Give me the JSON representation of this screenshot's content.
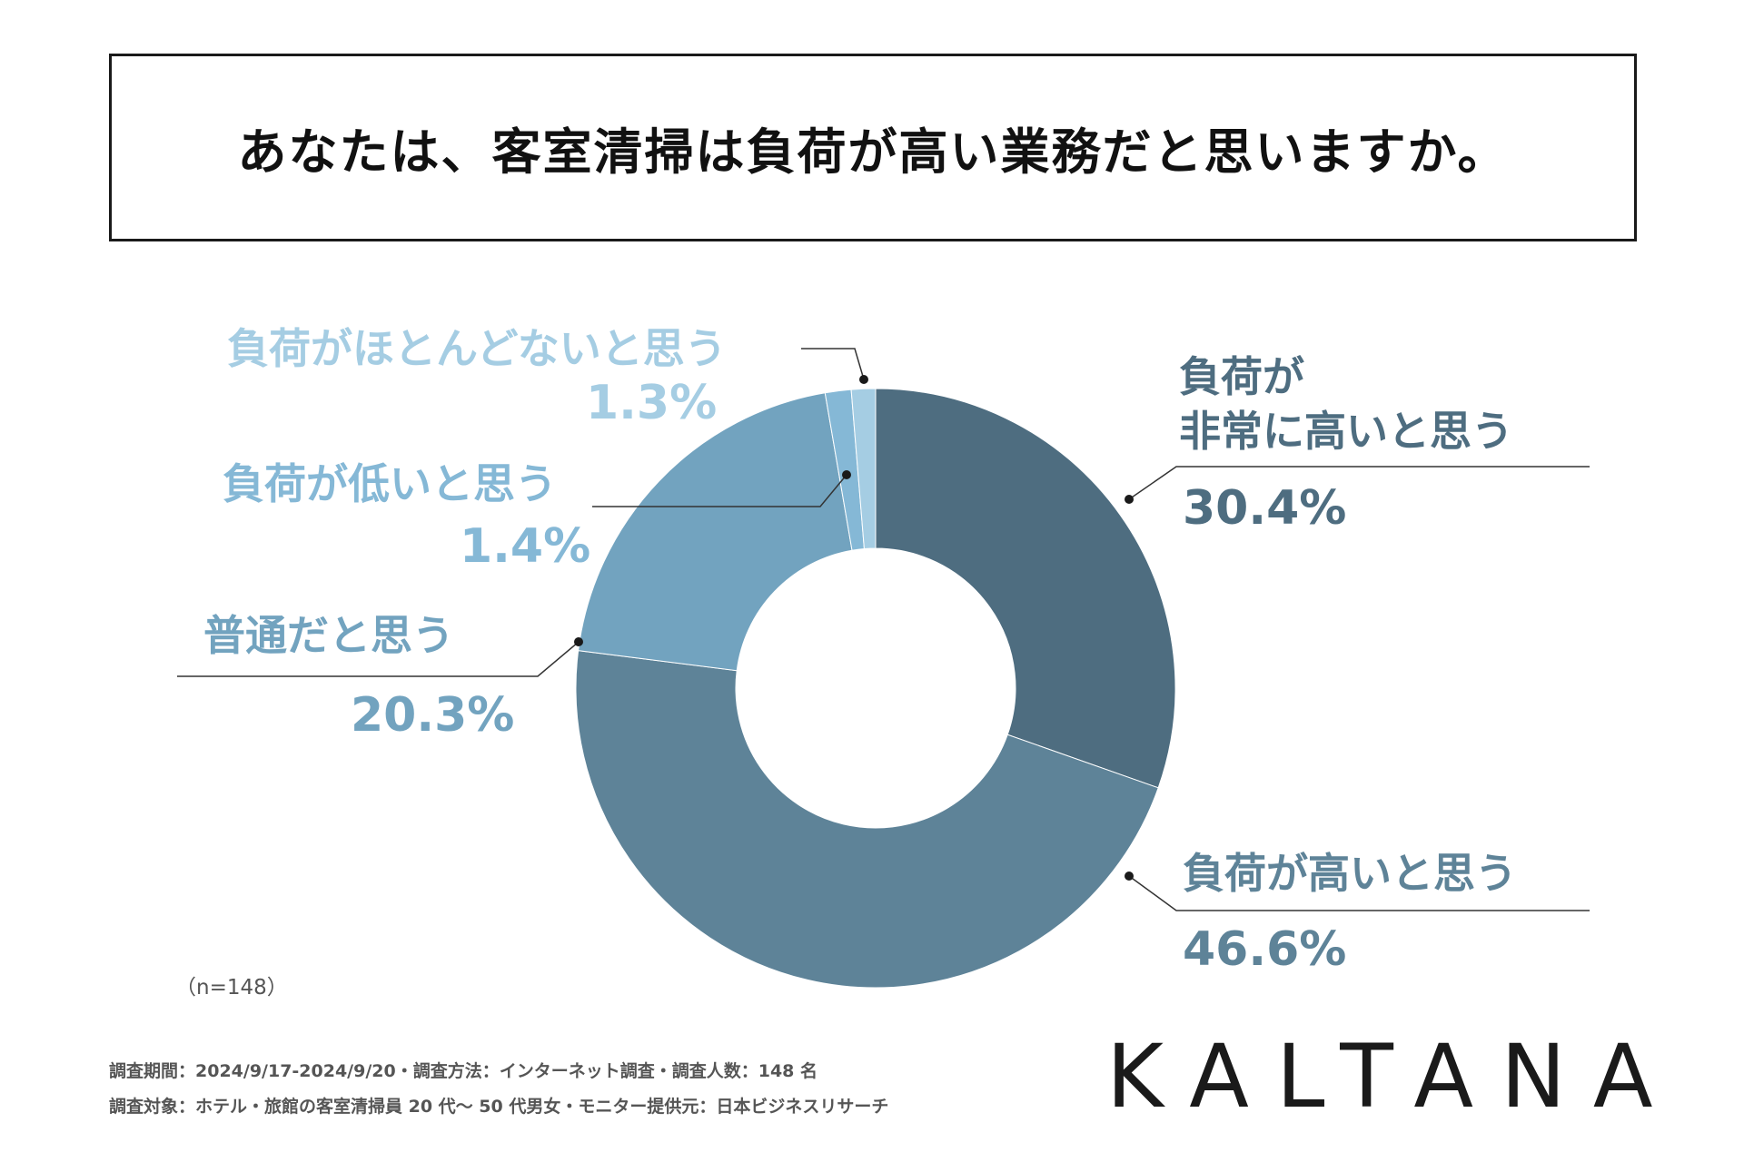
{
  "title": "あなたは、客室清掃は負荷が高い業務だと思いますか。",
  "sample_size": "（n=148）",
  "footer": {
    "line1": "調査期間：2024/9/17-2024/9/20・調査方法：インターネット調査・調査人数：148 名",
    "line2": "調査対象：ホテル・旅館の客室清掃員 20 代〜 50 代男女・モニター提供元：日本ビジネスリサーチ"
  },
  "logo": "KALTANA",
  "chart_data": {
    "type": "pie",
    "donut": true,
    "title": "",
    "start_angle_deg": 0,
    "direction": "clockwise",
    "slices": [
      {
        "label": "負荷が非常に高いと思う",
        "label_lines": [
          "負荷が",
          "非常に高いと思う"
        ],
        "value": 30.4,
        "display": "30.4%",
        "color": "#4e6d80",
        "text_color": "#4e6d80"
      },
      {
        "label": "負荷が高いと思う",
        "label_lines": [
          "負荷が高いと思う"
        ],
        "value": 46.6,
        "display": "46.6%",
        "color": "#5e8398",
        "text_color": "#5e8398"
      },
      {
        "label": "普通だと思う",
        "label_lines": [
          "普通だと思う"
        ],
        "value": 20.3,
        "display": "20.3%",
        "color": "#72a3bf",
        "text_color": "#72a3bf"
      },
      {
        "label": "負荷が低いと思う",
        "label_lines": [
          "負荷が低いと思う"
        ],
        "value": 1.4,
        "display": "1.4%",
        "color": "#85b8d6",
        "text_color": "#85b8d6"
      },
      {
        "label": "負荷がほとんどないと思う",
        "label_lines": [
          "負荷がほとんどないと思う"
        ],
        "value": 1.3,
        "display": "1.3%",
        "color": "#a5cde3",
        "text_color": "#a5cde3"
      }
    ]
  }
}
